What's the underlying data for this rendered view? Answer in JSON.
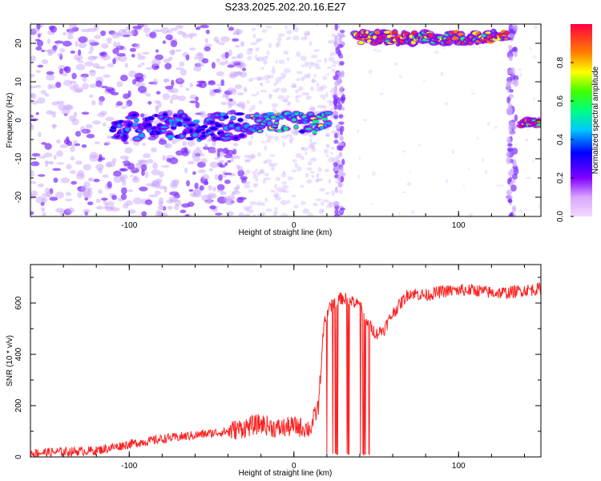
{
  "title": "S233.2025.202.20.16.E27",
  "chart_data": [
    {
      "type": "heatmap",
      "xlabel": "Height of straight line (km)",
      "ylabel": "Frequency (Hz)",
      "xlim": [
        -160,
        150
      ],
      "ylim": [
        -25,
        25
      ],
      "xticks": [
        -100,
        0,
        100
      ],
      "yticks": [
        -20,
        -10,
        0,
        10,
        20
      ],
      "colorbar": {
        "label": "Normalized spectral amplitude",
        "range": [
          0,
          1
        ],
        "ticks": [
          0.0,
          0.2,
          0.4,
          0.6,
          0.8
        ]
      },
      "segments": [
        {
          "x": [
            -110,
            -30
          ],
          "y": [
            -5,
            2
          ],
          "level": 0.35
        },
        {
          "x": [
            -30,
            22
          ],
          "y": [
            -3,
            2
          ],
          "level": 0.55
        },
        {
          "x": [
            37,
            130
          ],
          "y": [
            20,
            23
          ],
          "level": 0.9
        },
        {
          "x": [
            138,
            150
          ],
          "y": [
            -1.5,
            0
          ],
          "level": 0.9
        }
      ],
      "colors": {
        "bg_low": "#c9a6ff",
        "mid": "#7d2cff",
        "high": "#ff2030"
      }
    },
    {
      "type": "line",
      "xlabel": "Height of straight line (km)",
      "ylabel": "SNR (10 * v/v)",
      "xlim": [
        -160,
        150
      ],
      "ylim": [
        0,
        750
      ],
      "xticks": [
        -100,
        0,
        100
      ],
      "yticks": [
        0,
        200,
        400,
        600
      ],
      "series": [
        {
          "color": "#ff2020",
          "x": [
            -160,
            -140,
            -120,
            -100,
            -80,
            -60,
            -40,
            -20,
            -10,
            0,
            10,
            15,
            18,
            20,
            25,
            30,
            35,
            40,
            45,
            50,
            55,
            60,
            70,
            80,
            90,
            100,
            110,
            120,
            130,
            140,
            150
          ],
          "y": [
            15,
            20,
            25,
            50,
            70,
            85,
            100,
            130,
            110,
            120,
            110,
            200,
            500,
            560,
            610,
            620,
            605,
            590,
            520,
            480,
            500,
            560,
            640,
            630,
            645,
            650,
            650,
            640,
            640,
            650,
            655
          ]
        }
      ]
    }
  ]
}
